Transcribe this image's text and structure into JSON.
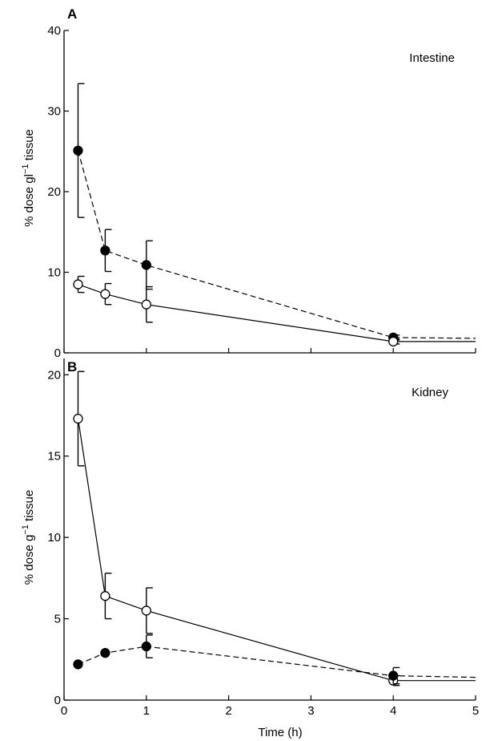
{
  "chart_data": [
    {
      "type": "line",
      "panel": "A",
      "annotation": "Intestine",
      "ylabel_main": "% dose gl",
      "ylabel_sup": "−1",
      "ylabel_end": " tissue",
      "xlabel": "",
      "xlim": [
        0,
        5
      ],
      "ylim": [
        0,
        40
      ],
      "xticks": [
        0,
        1,
        2,
        3,
        4,
        5
      ],
      "xtick_labels": [
        "",
        "",
        "",
        "",
        "",
        ""
      ],
      "yticks": [
        0,
        10,
        20,
        30,
        40
      ],
      "ytick_labels": [
        "0",
        "10",
        "20",
        "30",
        "40"
      ],
      "grid": false,
      "series": [
        {
          "marker": "filled",
          "line": "dashed",
          "x": [
            0.17,
            0.5,
            1,
            4
          ],
          "y": [
            25.1,
            12.7,
            10.9,
            1.9
          ],
          "err": [
            8.3,
            2.6,
            3.0,
            0.3
          ],
          "tail_y": 1.8
        },
        {
          "marker": "open",
          "line": "solid",
          "x": [
            0.17,
            0.5,
            1,
            4
          ],
          "y": [
            8.5,
            7.3,
            6.0,
            1.4
          ],
          "err": [
            1.0,
            1.3,
            2.2,
            0.3
          ],
          "tail_y": 1.4
        }
      ]
    },
    {
      "type": "line",
      "panel": "B",
      "annotation": "Kidney",
      "ylabel_main": "% dose g",
      "ylabel_sup": "−1",
      "ylabel_end": " tissue",
      "xlabel": "Time (h)",
      "xlim": [
        0,
        5
      ],
      "ylim": [
        0,
        21
      ],
      "xticks": [
        0,
        1,
        2,
        3,
        4,
        5
      ],
      "xtick_labels": [
        "0",
        "1",
        "2",
        "3",
        "4",
        "5"
      ],
      "yticks": [
        0,
        5,
        10,
        15,
        20
      ],
      "ytick_labels": [
        "0",
        "5",
        "10",
        "15",
        "20"
      ],
      "grid": false,
      "series": [
        {
          "marker": "open",
          "line": "solid",
          "x": [
            0.17,
            0.5,
            1,
            4
          ],
          "y": [
            17.3,
            6.4,
            5.5,
            1.2
          ],
          "err": [
            2.9,
            1.4,
            1.4,
            0.3
          ],
          "tail_y": 1.2
        },
        {
          "marker": "filled",
          "line": "dashed",
          "x": [
            0.17,
            0.5,
            1,
            4
          ],
          "y": [
            2.2,
            2.9,
            3.3,
            1.5
          ],
          "err": [
            0.0,
            0.0,
            0.7,
            0.5
          ],
          "tail_y": 1.4
        }
      ]
    }
  ]
}
